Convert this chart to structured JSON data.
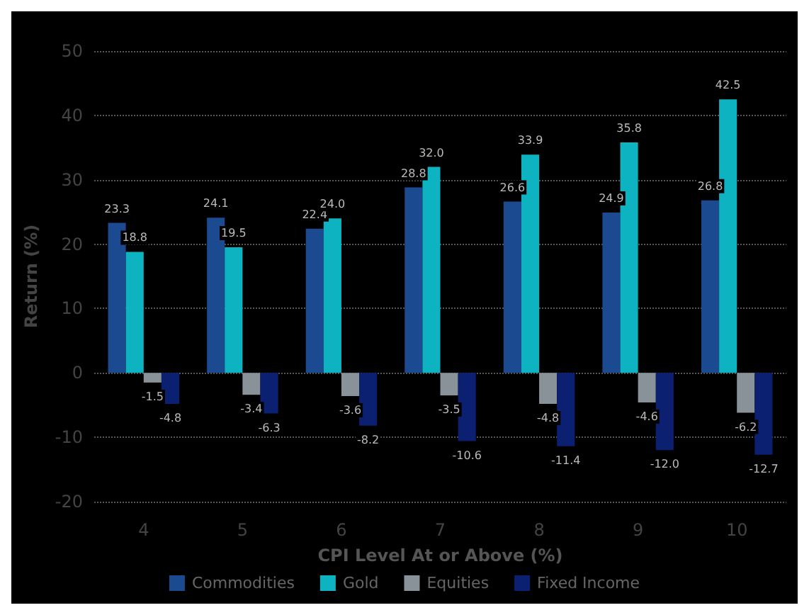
{
  "chart_data": {
    "type": "bar",
    "xlabel": "CPI Level At or Above (%)",
    "ylabel": "Return (%)",
    "categories": [
      "4",
      "5",
      "6",
      "7",
      "8",
      "9",
      "10"
    ],
    "series": [
      {
        "name": "Commodities",
        "color": "#1c4a91",
        "values": [
          23.3,
          24.1,
          22.4,
          28.8,
          26.6,
          24.9,
          26.8
        ],
        "value_labels": [
          "23.3",
          "24.1",
          "22.4",
          "28.8",
          "26.6",
          "24.9",
          "26.8"
        ]
      },
      {
        "name": "Gold",
        "color": "#0db3c1",
        "values": [
          18.8,
          19.5,
          24.0,
          32.0,
          33.9,
          35.8,
          42.5
        ],
        "value_labels": [
          "18.8",
          "19.5",
          "24.0",
          "32.0",
          "33.9",
          "35.8",
          "42.5"
        ]
      },
      {
        "name": "Equities",
        "color": "#8a9299",
        "values": [
          -1.5,
          -3.4,
          -3.6,
          -3.5,
          -4.8,
          -4.6,
          -6.2
        ],
        "value_labels": [
          "-1.5",
          "-3.4",
          "-3.6",
          "-3.5",
          "-4.8",
          "-4.6",
          "-6.2"
        ]
      },
      {
        "name": "Fixed Income",
        "color": "#0b2070",
        "values": [
          -4.8,
          -6.3,
          -8.2,
          -10.6,
          -11.4,
          -12.0,
          -12.7
        ],
        "value_labels": [
          "-4.8",
          "-6.3",
          "-8.2",
          "-10.6",
          "-11.4",
          "-12.0",
          "-12.7"
        ]
      }
    ],
    "ylim": [
      -20,
      50
    ],
    "yticks": [
      -20,
      -10,
      0,
      10,
      20,
      30,
      40,
      50
    ],
    "grid": "y",
    "legend": "bottom"
  }
}
